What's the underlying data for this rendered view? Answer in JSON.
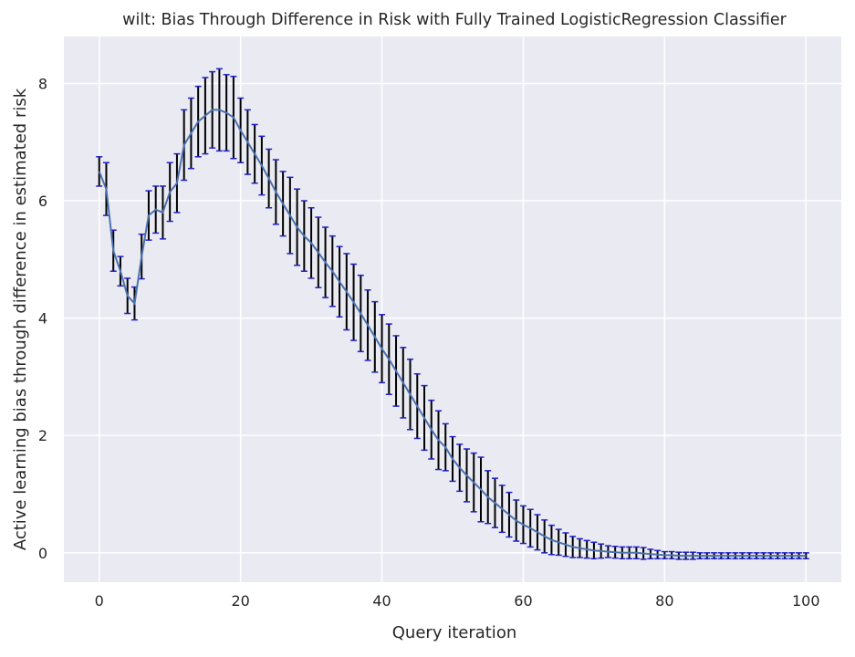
{
  "chart_data": {
    "type": "line",
    "title": "wilt: Bias Through Difference in Risk with Fully Trained LogisticRegression Classifier",
    "xlabel": "Query iteration",
    "ylabel": "Active learning bias through difference in estimated risk",
    "xlim": [
      -5,
      105
    ],
    "ylim": [
      -0.5,
      8.8
    ],
    "xticks": [
      0,
      20,
      40,
      60,
      80,
      100
    ],
    "yticks": [
      0,
      2,
      4,
      6,
      8
    ],
    "xtick_labels": [
      "0",
      "20",
      "40",
      "60",
      "80",
      "100"
    ],
    "ytick_labels": [
      "0",
      "2",
      "4",
      "6",
      "8"
    ],
    "grid": true,
    "background": "#eaeaf2",
    "grid_color": "#ffffff",
    "line_color": "#4c72b0",
    "errorbar_color": "#000000",
    "cap_color": "#1f1fcc",
    "series": [
      {
        "x": [
          0,
          1,
          2,
          3,
          4,
          5,
          6,
          7,
          8,
          9,
          10,
          11,
          12,
          13,
          14,
          15,
          16,
          17,
          18,
          19,
          20,
          21,
          22,
          23,
          24,
          25,
          26,
          27,
          28,
          29,
          30,
          31,
          32,
          33,
          34,
          35,
          36,
          37,
          38,
          39,
          40,
          41,
          42,
          43,
          44,
          45,
          46,
          47,
          48,
          49,
          50,
          51,
          52,
          53,
          54,
          55,
          56,
          57,
          58,
          59,
          60,
          61,
          62,
          63,
          64,
          65,
          66,
          67,
          68,
          69,
          70,
          71,
          72,
          73,
          74,
          75,
          76,
          77,
          78,
          79,
          80,
          81,
          82,
          83,
          84,
          85,
          86,
          87,
          88,
          89,
          90,
          91,
          92,
          93,
          94,
          95,
          96,
          97,
          98,
          99,
          100
        ],
        "y": [
          6.5,
          6.2,
          5.15,
          4.8,
          4.38,
          4.25,
          5.05,
          5.75,
          5.85,
          5.8,
          6.15,
          6.3,
          6.95,
          7.15,
          7.35,
          7.45,
          7.55,
          7.55,
          7.5,
          7.42,
          7.2,
          7.0,
          6.8,
          6.6,
          6.38,
          6.15,
          5.95,
          5.75,
          5.55,
          5.4,
          5.28,
          5.12,
          4.95,
          4.8,
          4.62,
          4.45,
          4.27,
          4.08,
          3.88,
          3.68,
          3.48,
          3.3,
          3.1,
          2.9,
          2.7,
          2.5,
          2.3,
          2.1,
          1.92,
          1.8,
          1.6,
          1.45,
          1.32,
          1.2,
          1.08,
          0.95,
          0.85,
          0.75,
          0.65,
          0.55,
          0.48,
          0.42,
          0.35,
          0.28,
          0.22,
          0.18,
          0.14,
          0.1,
          0.08,
          0.06,
          0.04,
          0.03,
          0.02,
          0.01,
          0.0,
          0.0,
          0.0,
          -0.01,
          -0.02,
          -0.03,
          -0.04,
          -0.04,
          -0.05,
          -0.05,
          -0.05,
          -0.05,
          -0.05,
          -0.05,
          -0.05,
          -0.05,
          -0.05,
          -0.05,
          -0.05,
          -0.05,
          -0.05,
          -0.05,
          -0.05,
          -0.05,
          -0.05,
          -0.05,
          -0.05
        ],
        "err": [
          0.25,
          0.45,
          0.35,
          0.25,
          0.3,
          0.28,
          0.38,
          0.42,
          0.4,
          0.45,
          0.5,
          0.5,
          0.6,
          0.6,
          0.6,
          0.65,
          0.65,
          0.7,
          0.65,
          0.7,
          0.55,
          0.55,
          0.5,
          0.5,
          0.5,
          0.55,
          0.55,
          0.65,
          0.65,
          0.6,
          0.6,
          0.6,
          0.6,
          0.6,
          0.6,
          0.65,
          0.65,
          0.65,
          0.6,
          0.6,
          0.58,
          0.6,
          0.6,
          0.6,
          0.6,
          0.55,
          0.55,
          0.5,
          0.5,
          0.4,
          0.38,
          0.4,
          0.45,
          0.5,
          0.55,
          0.45,
          0.42,
          0.4,
          0.38,
          0.35,
          0.32,
          0.32,
          0.3,
          0.28,
          0.25,
          0.22,
          0.2,
          0.18,
          0.16,
          0.15,
          0.14,
          0.12,
          0.1,
          0.1,
          0.1,
          0.1,
          0.1,
          0.1,
          0.08,
          0.07,
          0.06,
          0.06,
          0.06,
          0.06,
          0.06,
          0.05,
          0.05,
          0.05,
          0.05,
          0.05,
          0.05,
          0.05,
          0.05,
          0.05,
          0.05,
          0.05,
          0.05,
          0.05,
          0.05,
          0.05,
          0.05
        ]
      }
    ]
  }
}
